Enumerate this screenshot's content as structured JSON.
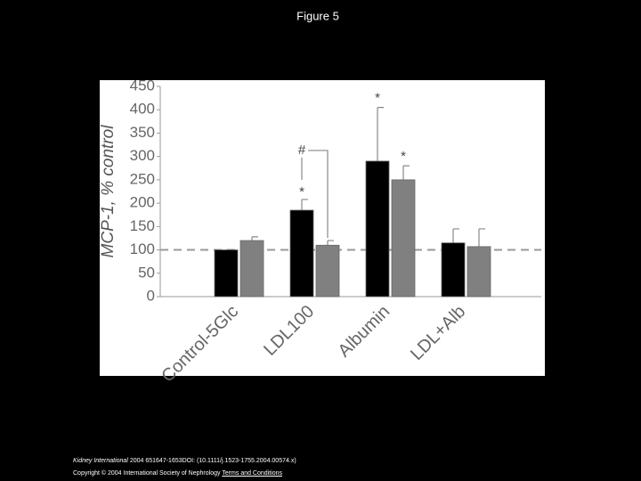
{
  "chart_data": {
    "type": "bar",
    "title": "Figure 5",
    "ylabel": "MCP-1, % control",
    "categories": [
      "Control-5Glc",
      "LDL100",
      "Albumin",
      "LDL+Alb"
    ],
    "series": [
      {
        "color": "#000000",
        "values": [
          100,
          185,
          290,
          115
        ],
        "errors": [
          0,
          23,
          115,
          30
        ]
      },
      {
        "color": "#808080",
        "values": [
          120,
          110,
          250,
          107
        ],
        "errors": [
          8,
          10,
          30,
          38
        ]
      }
    ],
    "ylim": [
      0,
      450
    ],
    "yticks": [
      0,
      50,
      100,
      150,
      200,
      250,
      300,
      350,
      400,
      450
    ],
    "hline": 100,
    "annotations": [
      "*",
      "#",
      "*",
      "*"
    ]
  },
  "footer": {
    "journal": "Kidney International",
    "citation": "2004 651647-1653DOI: (10.1111/j.1523-1755.2004.00574.x)",
    "copyright": "Copyright © 2004 International Society of Nephrology",
    "link": "Terms and Conditions"
  }
}
